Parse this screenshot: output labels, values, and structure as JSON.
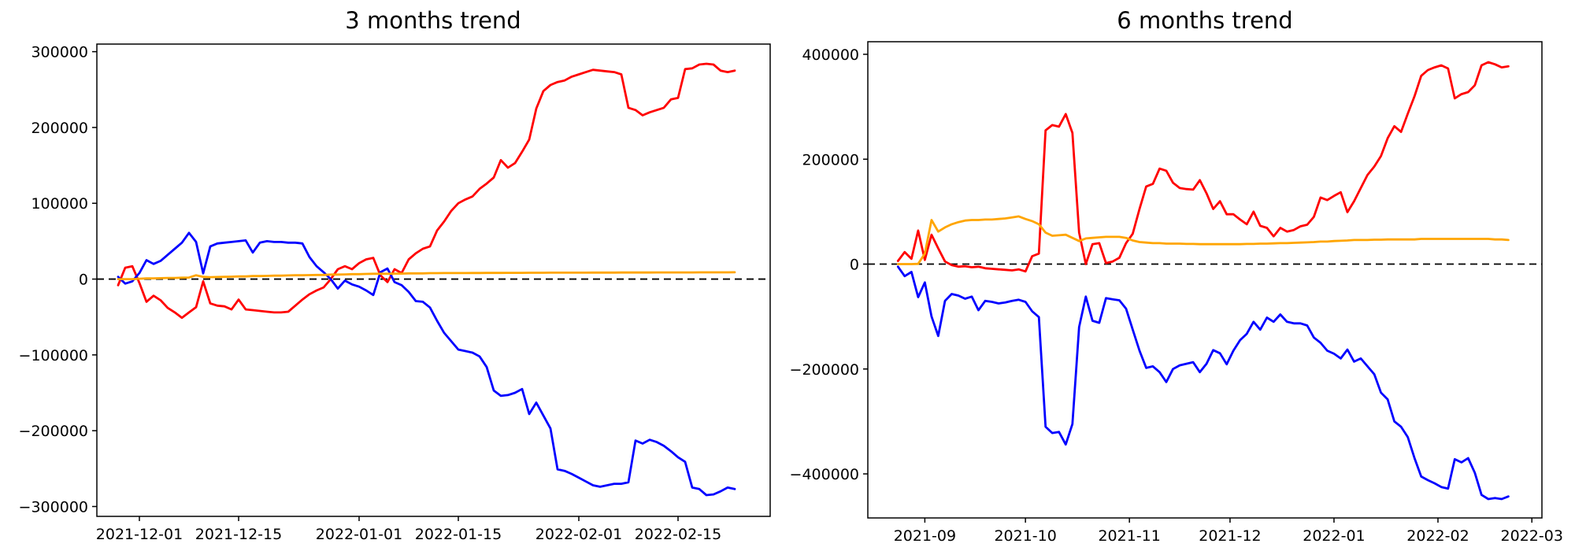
{
  "figure": {
    "background": "#ffffff",
    "axis_color": "#000000",
    "zero_line_color": "#000000"
  },
  "chart_data": [
    {
      "type": "line",
      "title": "3 months trend",
      "xlabel": "",
      "ylabel": "",
      "grid": false,
      "legend": "none",
      "zero_line": true,
      "xlim": [
        "2021-11-25",
        "2022-02-28"
      ],
      "ylim": [
        -313000,
        310000
      ],
      "yticks": [
        {
          "v": 300000,
          "label": "300000"
        },
        {
          "v": 200000,
          "label": "200000"
        },
        {
          "v": 100000,
          "label": "100000"
        },
        {
          "v": 0,
          "label": "0"
        },
        {
          "v": -100000,
          "label": "−100000"
        },
        {
          "v": -200000,
          "label": "−200000"
        },
        {
          "v": -300000,
          "label": "−300000"
        }
      ],
      "xticks": [
        {
          "d": "2021-12-01",
          "label": "2021-12-01"
        },
        {
          "d": "2021-12-15",
          "label": "2021-12-15"
        },
        {
          "d": "2022-01-01",
          "label": "2022-01-01"
        },
        {
          "d": "2022-01-15",
          "label": "2022-01-15"
        },
        {
          "d": "2022-02-01",
          "label": "2022-02-01"
        },
        {
          "d": "2022-02-15",
          "label": "2022-02-15"
        }
      ],
      "dates": [
        "2021-11-28",
        "2021-11-29",
        "2021-11-30",
        "2021-12-01",
        "2021-12-02",
        "2021-12-03",
        "2021-12-04",
        "2021-12-05",
        "2021-12-06",
        "2021-12-07",
        "2021-12-08",
        "2021-12-09",
        "2021-12-10",
        "2021-12-11",
        "2021-12-12",
        "2021-12-13",
        "2021-12-14",
        "2021-12-15",
        "2021-12-16",
        "2021-12-17",
        "2021-12-18",
        "2021-12-19",
        "2021-12-20",
        "2021-12-21",
        "2021-12-22",
        "2021-12-23",
        "2021-12-24",
        "2021-12-25",
        "2021-12-26",
        "2021-12-27",
        "2021-12-28",
        "2021-12-29",
        "2021-12-30",
        "2021-12-31",
        "2022-01-01",
        "2022-01-02",
        "2022-01-03",
        "2022-01-04",
        "2022-01-05",
        "2022-01-06",
        "2022-01-07",
        "2022-01-08",
        "2022-01-09",
        "2022-01-10",
        "2022-01-11",
        "2022-01-12",
        "2022-01-13",
        "2022-01-14",
        "2022-01-15",
        "2022-01-16",
        "2022-01-17",
        "2022-01-18",
        "2022-01-19",
        "2022-01-20",
        "2022-01-21",
        "2022-01-22",
        "2022-01-23",
        "2022-01-24",
        "2022-01-25",
        "2022-01-26",
        "2022-01-27",
        "2022-01-28",
        "2022-01-29",
        "2022-01-30",
        "2022-01-31",
        "2022-02-01",
        "2022-02-02",
        "2022-02-03",
        "2022-02-04",
        "2022-02-05",
        "2022-02-06",
        "2022-02-07",
        "2022-02-08",
        "2022-02-09",
        "2022-02-10",
        "2022-02-11",
        "2022-02-12",
        "2022-02-13",
        "2022-02-14",
        "2022-02-15",
        "2022-02-16",
        "2022-02-17",
        "2022-02-18",
        "2022-02-19",
        "2022-02-20",
        "2022-02-21",
        "2022-02-22",
        "2022-02-23"
      ],
      "series": [
        {
          "name": "red",
          "color": "#ff0000",
          "values": [
            -8000,
            15000,
            17000,
            -5000,
            -30000,
            -22000,
            -28000,
            -38000,
            -44000,
            -51000,
            -44000,
            -37000,
            -3000,
            -32000,
            -35000,
            -36000,
            -40000,
            -27000,
            -40000,
            -41000,
            -42000,
            -43000,
            -44000,
            -44000,
            -43000,
            -35000,
            -27000,
            -20000,
            -15000,
            -11000,
            0,
            13000,
            17000,
            13000,
            21000,
            26000,
            28000,
            5000,
            -4000,
            13000,
            8000,
            26000,
            34000,
            40000,
            43000,
            64000,
            76000,
            90000,
            100000,
            105000,
            109000,
            119000,
            126000,
            134000,
            157000,
            147000,
            153000,
            168000,
            184000,
            225000,
            248000,
            256000,
            260000,
            262000,
            267000,
            270000,
            273000,
            276000,
            275000,
            274000,
            273000,
            270000,
            226000,
            223000,
            216000,
            220000,
            223000,
            226000,
            237000,
            239000,
            277000,
            278000,
            283000,
            284000,
            283000,
            275000,
            273000,
            275000
          ]
        },
        {
          "name": "blue",
          "color": "#0000ff",
          "values": [
            3000,
            -6000,
            -3000,
            8000,
            25000,
            20000,
            24000,
            32000,
            40000,
            48000,
            61000,
            49000,
            7500,
            43000,
            47000,
            48000,
            49000,
            50000,
            51000,
            35000,
            48000,
            50000,
            49000,
            49000,
            48000,
            48000,
            47000,
            29000,
            17000,
            9000,
            0,
            -12500,
            -2000,
            -7000,
            -10000,
            -15000,
            -21000,
            9000,
            14000,
            -4000,
            -8000,
            -17000,
            -29000,
            -30000,
            -37500,
            -55000,
            -71000,
            -82000,
            -93000,
            -95000,
            -97000,
            -102000,
            -116000,
            -147000,
            -154000,
            -153000,
            -150000,
            -145000,
            -178000,
            -163000,
            -180000,
            -197000,
            -251000,
            -253000,
            -257000,
            -262000,
            -267000,
            -272000,
            -274000,
            -272000,
            -270000,
            -270000,
            -268000,
            -213000,
            -217000,
            -212000,
            -215000,
            -220000,
            -227000,
            -235000,
            -241000,
            -275000,
            -277000,
            -285000,
            -284000,
            -280000,
            -275000,
            -277000
          ]
        },
        {
          "name": "orange",
          "color": "#ffa500",
          "values": [
            0,
            0,
            0,
            500,
            1000,
            1000,
            1200,
            1500,
            1500,
            1800,
            2000,
            5000,
            3000,
            2500,
            2800,
            3000,
            3200,
            3500,
            3500,
            4000,
            4000,
            4200,
            4500,
            4500,
            4800,
            5000,
            5000,
            5200,
            5500,
            5500,
            6000,
            6000,
            6200,
            6500,
            6500,
            6800,
            7000,
            7000,
            7000,
            7200,
            7200,
            7500,
            7500,
            7500,
            7800,
            7800,
            8000,
            8000,
            8000,
            8000,
            8100,
            8100,
            8200,
            8200,
            8200,
            8300,
            8300,
            8300,
            8400,
            8400,
            8400,
            8500,
            8500,
            8500,
            8500,
            8500,
            8500,
            8600,
            8600,
            8600,
            8600,
            8700,
            8700,
            8700,
            8700,
            8700,
            8800,
            8800,
            8800,
            8800,
            8800,
            8800,
            8900,
            8900,
            8900,
            8900,
            8900,
            9000
          ]
        }
      ]
    },
    {
      "type": "line",
      "title": "6 months trend",
      "xlabel": "",
      "ylabel": "",
      "grid": false,
      "legend": "none",
      "zero_line": true,
      "xlim": [
        "2021-08-15",
        "2022-03-04"
      ],
      "ylim": [
        -484000,
        424000
      ],
      "yticks": [
        {
          "v": 400000,
          "label": "400000"
        },
        {
          "v": 200000,
          "label": "200000"
        },
        {
          "v": 0,
          "label": "0"
        },
        {
          "v": -200000,
          "label": "−200000"
        },
        {
          "v": -400000,
          "label": "−400000"
        }
      ],
      "xticks": [
        {
          "d": "2021-09-01",
          "label": "2021-09"
        },
        {
          "d": "2021-10-01",
          "label": "2021-10"
        },
        {
          "d": "2021-11-01",
          "label": "2021-11"
        },
        {
          "d": "2021-12-01",
          "label": "2021-12"
        },
        {
          "d": "2022-01-01",
          "label": "2022-01"
        },
        {
          "d": "2022-02-01",
          "label": "2022-02"
        },
        {
          "d": "2022-03-01",
          "label": "2022-03"
        }
      ],
      "dates": [
        "2021-08-24",
        "2021-08-26",
        "2021-08-28",
        "2021-08-30",
        "2021-09-01",
        "2021-09-03",
        "2021-09-05",
        "2021-09-07",
        "2021-09-09",
        "2021-09-11",
        "2021-09-13",
        "2021-09-15",
        "2021-09-17",
        "2021-09-19",
        "2021-09-21",
        "2021-09-23",
        "2021-09-25",
        "2021-09-27",
        "2021-09-29",
        "2021-10-01",
        "2021-10-03",
        "2021-10-05",
        "2021-10-07",
        "2021-10-09",
        "2021-10-11",
        "2021-10-13",
        "2021-10-15",
        "2021-10-17",
        "2021-10-19",
        "2021-10-21",
        "2021-10-23",
        "2021-10-25",
        "2021-10-27",
        "2021-10-29",
        "2021-10-31",
        "2021-11-02",
        "2021-11-04",
        "2021-11-06",
        "2021-11-08",
        "2021-11-10",
        "2021-11-12",
        "2021-11-14",
        "2021-11-16",
        "2021-11-18",
        "2021-11-20",
        "2021-11-22",
        "2021-11-24",
        "2021-11-26",
        "2021-11-28",
        "2021-11-30",
        "2021-12-02",
        "2021-12-04",
        "2021-12-06",
        "2021-12-08",
        "2021-12-10",
        "2021-12-12",
        "2021-12-14",
        "2021-12-16",
        "2021-12-18",
        "2021-12-20",
        "2021-12-22",
        "2021-12-24",
        "2021-12-26",
        "2021-12-28",
        "2021-12-30",
        "2022-01-01",
        "2022-01-03",
        "2022-01-05",
        "2022-01-07",
        "2022-01-09",
        "2022-01-11",
        "2022-01-13",
        "2022-01-15",
        "2022-01-17",
        "2022-01-19",
        "2022-01-21",
        "2022-01-23",
        "2022-01-25",
        "2022-01-27",
        "2022-01-29",
        "2022-01-31",
        "2022-02-02",
        "2022-02-04",
        "2022-02-06",
        "2022-02-08",
        "2022-02-10",
        "2022-02-12",
        "2022-02-14",
        "2022-02-16",
        "2022-02-18",
        "2022-02-20",
        "2022-02-22"
      ],
      "series": [
        {
          "name": "red",
          "color": "#ff0000",
          "values": [
            6000,
            23000,
            10000,
            64000,
            8000,
            56000,
            30000,
            5000,
            -2000,
            -5000,
            -4000,
            -6000,
            -5000,
            -8000,
            -9000,
            -10000,
            -11000,
            -12000,
            -10000,
            -14000,
            15000,
            20000,
            255000,
            265000,
            262000,
            286000,
            250000,
            60000,
            0,
            38000,
            40000,
            2000,
            5000,
            12000,
            40000,
            58000,
            105000,
            148000,
            153000,
            182000,
            178000,
            155000,
            145000,
            143000,
            142000,
            160000,
            135000,
            105000,
            120000,
            95000,
            95000,
            85000,
            76000,
            100000,
            73000,
            69000,
            53000,
            69000,
            62000,
            65000,
            72000,
            75000,
            90000,
            127000,
            122000,
            130000,
            137000,
            99000,
            120000,
            145000,
            170000,
            186000,
            206000,
            240000,
            263000,
            252000,
            287000,
            320000,
            359000,
            370000,
            375000,
            379000,
            373000,
            316000,
            324000,
            328000,
            341000,
            379000,
            385000,
            381000,
            375000,
            377000
          ]
        },
        {
          "name": "blue",
          "color": "#0000ff",
          "values": [
            -5000,
            -23000,
            -15000,
            -63000,
            -35000,
            -100000,
            -137000,
            -70000,
            -57000,
            -60000,
            -66000,
            -62000,
            -88000,
            -70000,
            -72000,
            -75000,
            -73000,
            -70000,
            -68000,
            -72000,
            -90000,
            -101000,
            -310000,
            -322000,
            -320000,
            -344000,
            -305000,
            -120000,
            -62000,
            -108000,
            -112000,
            -65000,
            -67000,
            -69000,
            -85000,
            -125000,
            -165000,
            -198000,
            -195000,
            -206000,
            -225000,
            -200000,
            -193000,
            -190000,
            -187000,
            -206000,
            -190000,
            -164000,
            -170000,
            -191000,
            -165000,
            -145000,
            -133000,
            -110000,
            -125000,
            -102000,
            -110000,
            -96000,
            -110000,
            -113000,
            -113000,
            -117000,
            -140000,
            -150000,
            -165000,
            -171000,
            -180000,
            -163000,
            -186000,
            -180000,
            -195000,
            -210000,
            -245000,
            -258000,
            -300000,
            -310000,
            -330000,
            -370000,
            -405000,
            -412000,
            -418000,
            -425000,
            -428000,
            -372000,
            -378000,
            -370000,
            -398000,
            -440000,
            -448000,
            -446000,
            -448000,
            -443000
          ]
        },
        {
          "name": "orange",
          "color": "#ffa500",
          "values": [
            0,
            0,
            0,
            500,
            20000,
            84000,
            62000,
            70000,
            76000,
            80000,
            83000,
            84000,
            84000,
            85000,
            85000,
            86000,
            87000,
            89000,
            91000,
            86000,
            82000,
            76000,
            60000,
            54000,
            55000,
            56000,
            50000,
            44000,
            49000,
            50000,
            51000,
            52000,
            52000,
            52000,
            50000,
            45000,
            42000,
            41000,
            40000,
            40000,
            39000,
            39000,
            39000,
            38500,
            38500,
            38000,
            38000,
            38000,
            38000,
            38000,
            38000,
            38000,
            38500,
            38500,
            39000,
            39000,
            39500,
            40000,
            40000,
            40500,
            41000,
            41500,
            42000,
            43000,
            43000,
            44000,
            44500,
            45000,
            46000,
            46000,
            46000,
            46500,
            46500,
            47000,
            47000,
            47000,
            47000,
            47000,
            48000,
            48000,
            48000,
            48000,
            48000,
            48000,
            48000,
            48000,
            48000,
            48000,
            48000,
            47000,
            47000,
            46000
          ]
        }
      ]
    }
  ]
}
